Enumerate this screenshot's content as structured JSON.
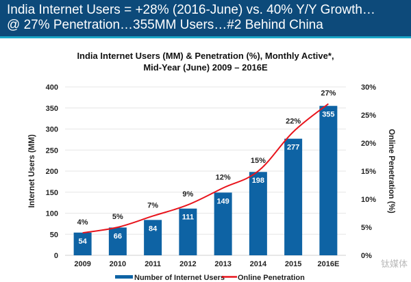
{
  "header": {
    "title": "India Internet Users = +28% (2016-June) vs. 40% Y/Y Growth…\n@ 27% Penetration…355MM Users…#2 Behind China"
  },
  "watermark": "钛媒体",
  "colors": {
    "header_bg": "#0d4a7a",
    "header_strip": "#1aa7c9",
    "bar": "#0e63a4",
    "line": "#e8141c"
  },
  "chart_data": {
    "type": "bar",
    "title": "India Internet Users (MM) & Penetration (%), Monthly Active*,\nMid-Year (June) 2009 – 2016E",
    "xlabel": "",
    "ylabel": "Internet Users (MM)",
    "y2label": "Online Penetration (%)",
    "categories": [
      "2009",
      "2010",
      "2011",
      "2012",
      "2013",
      "2014",
      "2015",
      "2016E"
    ],
    "ylim": [
      0,
      400
    ],
    "yticks": [
      0,
      50,
      100,
      150,
      200,
      250,
      300,
      350,
      400
    ],
    "y2lim": [
      0,
      30
    ],
    "y2ticks": [
      "0%",
      "5%",
      "10%",
      "15%",
      "20%",
      "25%",
      "30%"
    ],
    "grid": true,
    "legend_position": "bottom",
    "series": [
      {
        "name": "Number of Internet Users",
        "type": "bar",
        "axis": "left",
        "values": [
          54,
          66,
          84,
          111,
          149,
          198,
          277,
          355
        ],
        "labels": [
          "54",
          "66",
          "84",
          "111",
          "149",
          "198",
          "277",
          "355"
        ]
      },
      {
        "name": "Online Penetration",
        "type": "line",
        "axis": "right",
        "values": [
          4,
          5,
          7,
          9,
          12,
          15,
          22,
          27
        ],
        "labels": [
          "4%",
          "5%",
          "7%",
          "9%",
          "12%",
          "15%",
          "22%",
          "27%"
        ]
      }
    ]
  }
}
